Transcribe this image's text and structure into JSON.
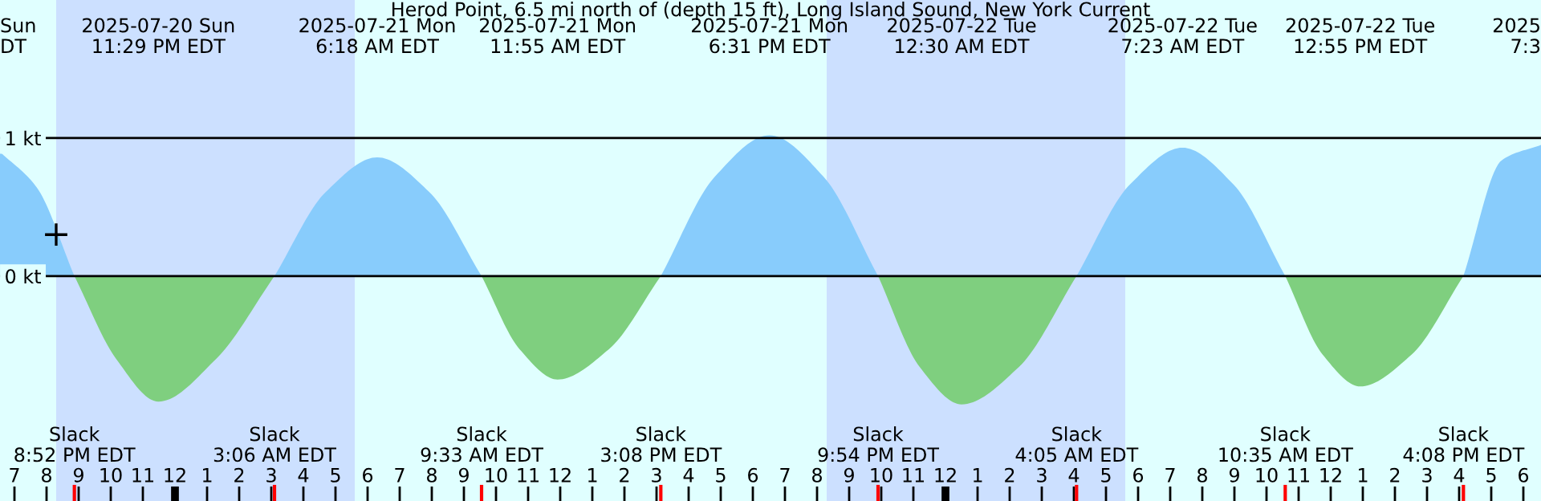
{
  "chart_data": {
    "type": "area",
    "title": "Herod Point, 6.5 mi north of (depth 15 ft), Long Island Sound, New York Current",
    "series": [
      {
        "color": "#88ccfc",
        "x": [
          "2025-07-20T18:33",
          "2025-07-20T19:42",
          "2025-07-20T20:52",
          "2025-07-21T03:06",
          "2025-07-21T04:42",
          "2025-07-21T06:18",
          "2025-07-21T07:55",
          "2025-07-21T09:33",
          "2025-07-21T15:08",
          "2025-07-21T16:49",
          "2025-07-21T18:31",
          "2025-07-21T20:12",
          "2025-07-21T21:54",
          "2025-07-22T04:05",
          "2025-07-22T05:44",
          "2025-07-22T07:23",
          "2025-07-22T08:59",
          "2025-07-22T10:35",
          "2025-07-22T16:08",
          "2025-07-22T17:20",
          "2025-07-22T18:33"
        ],
        "values": [
          0.9,
          0.64,
          0,
          0,
          0.61,
          0.86,
          0.61,
          0,
          0,
          0.72,
          1.02,
          0.72,
          0,
          0,
          0.66,
          0.93,
          0.66,
          0,
          0,
          0.84,
          0.95
        ]
      },
      {
        "color": "#7fcf7f",
        "x": [
          "2025-07-20T20:52",
          "2025-07-20T22:10",
          "2025-07-20T23:29",
          "2025-07-21T01:17",
          "2025-07-21T03:06",
          "2025-07-21T09:33",
          "2025-07-21T10:44",
          "2025-07-21T11:55",
          "2025-07-21T13:31",
          "2025-07-21T15:08",
          "2025-07-21T21:54",
          "2025-07-21T23:12",
          "2025-07-22T00:30",
          "2025-07-22T02:17",
          "2025-07-22T04:05",
          "2025-07-22T10:35",
          "2025-07-22T11:45",
          "2025-07-22T12:55",
          "2025-07-22T14:31",
          "2025-07-22T16:08"
        ],
        "values": [
          0,
          -0.6,
          -0.91,
          -0.6,
          0,
          0,
          -0.53,
          -0.75,
          -0.53,
          0,
          0,
          -0.66,
          -0.93,
          -0.66,
          0,
          0,
          -0.57,
          -0.8,
          -0.57,
          0
        ]
      },
      {
        "type": "scatter",
        "color": "#000000",
        "marker": "cross",
        "x": [
          "2025-07-20T20:18"
        ],
        "values": [
          0.3
        ]
      }
    ],
    "xlim": [
      "2025-07-20T18:33",
      "2025-07-22T18:33"
    ],
    "ylim": [
      -1.63,
      2.0
    ],
    "yticks": [
      {
        "value": 0,
        "label": "0 kt"
      },
      {
        "value": 1,
        "label": "1 kt"
      }
    ],
    "xticks": [
      {
        "value": "2025-07-20T19:00",
        "label": "7"
      },
      {
        "value": "2025-07-20T20:00",
        "label": "8"
      },
      {
        "value": "2025-07-20T21:00",
        "label": "9"
      },
      {
        "value": "2025-07-20T22:00",
        "label": "10"
      },
      {
        "value": "2025-07-20T23:00",
        "label": "11"
      },
      {
        "value": "2025-07-21T00:00",
        "label": "12"
      },
      {
        "value": "2025-07-21T01:00",
        "label": "1"
      },
      {
        "value": "2025-07-21T02:00",
        "label": "2"
      },
      {
        "value": "2025-07-21T03:00",
        "label": "3"
      },
      {
        "value": "2025-07-21T04:00",
        "label": "4"
      },
      {
        "value": "2025-07-21T05:00",
        "label": "5"
      },
      {
        "value": "2025-07-21T06:00",
        "label": "6"
      },
      {
        "value": "2025-07-21T07:00",
        "label": "7"
      },
      {
        "value": "2025-07-21T08:00",
        "label": "8"
      },
      {
        "value": "2025-07-21T09:00",
        "label": "9"
      },
      {
        "value": "2025-07-21T10:00",
        "label": "10"
      },
      {
        "value": "2025-07-21T11:00",
        "label": "11"
      },
      {
        "value": "2025-07-21T12:00",
        "label": "12"
      },
      {
        "value": "2025-07-21T13:00",
        "label": "1"
      },
      {
        "value": "2025-07-21T14:00",
        "label": "2"
      },
      {
        "value": "2025-07-21T15:00",
        "label": "3"
      },
      {
        "value": "2025-07-21T16:00",
        "label": "4"
      },
      {
        "value": "2025-07-21T17:00",
        "label": "5"
      },
      {
        "value": "2025-07-21T18:00",
        "label": "6"
      },
      {
        "value": "2025-07-21T19:00",
        "label": "7"
      },
      {
        "value": "2025-07-21T20:00",
        "label": "8"
      },
      {
        "value": "2025-07-21T21:00",
        "label": "9"
      },
      {
        "value": "2025-07-21T22:00",
        "label": "10"
      },
      {
        "value": "2025-07-21T23:00",
        "label": "11"
      },
      {
        "value": "2025-07-22T00:00",
        "label": "12"
      },
      {
        "value": "2025-07-22T01:00",
        "label": "1"
      },
      {
        "value": "2025-07-22T02:00",
        "label": "2"
      },
      {
        "value": "2025-07-22T03:00",
        "label": "3"
      },
      {
        "value": "2025-07-22T04:00",
        "label": "4"
      },
      {
        "value": "2025-07-22T05:00",
        "label": "5"
      },
      {
        "value": "2025-07-22T06:00",
        "label": "6"
      },
      {
        "value": "2025-07-22T07:00",
        "label": "7"
      },
      {
        "value": "2025-07-22T08:00",
        "label": "8"
      },
      {
        "value": "2025-07-22T09:00",
        "label": "9"
      },
      {
        "value": "2025-07-22T10:00",
        "label": "10"
      },
      {
        "value": "2025-07-22T11:00",
        "label": "11"
      },
      {
        "value": "2025-07-22T12:00",
        "label": "12"
      },
      {
        "value": "2025-07-22T13:00",
        "label": "1"
      },
      {
        "value": "2025-07-22T14:00",
        "label": "2"
      },
      {
        "value": "2025-07-22T15:00",
        "label": "3"
      },
      {
        "value": "2025-07-22T16:00",
        "label": "4"
      },
      {
        "value": "2025-07-22T17:00",
        "label": "5"
      },
      {
        "value": "2025-07-22T18:00",
        "label": "6"
      }
    ],
    "grid": "y",
    "bands": [
      {
        "axis": "x",
        "from": "2025-07-20T20:18",
        "to": "2025-07-21T05:36",
        "color": "#cce0ff"
      },
      {
        "axis": "x",
        "from": "2025-07-21T20:18",
        "to": "2025-07-22T05:36",
        "color": "#cce0ff"
      }
    ],
    "annotations": [
      "Sun\nDT",
      "2025\n7:3",
      "Slack\n8:52 PM EDT",
      "2025-07-20 Sun\n11:29 PM EDT",
      "Slack\n3:06 AM EDT",
      "2025-07-21 Mon\n6:18 AM EDT",
      "Slack\n9:33 AM EDT",
      "2025-07-21 Mon\n11:55 AM EDT",
      "Slack\n3:08 PM EDT",
      "2025-07-21 Mon\n6:31 PM EDT",
      "Slack\n9:54 PM EDT",
      "2025-07-22 Tue\n12:30 AM EDT",
      "Slack\n4:05 AM EDT",
      "2025-07-22 Tue\n7:23 AM EDT",
      "Slack\n10:35 AM EDT",
      "2025-07-22 Tue\n12:55 PM EDT",
      "Slack\n4:08 PM EDT"
    ]
  }
}
